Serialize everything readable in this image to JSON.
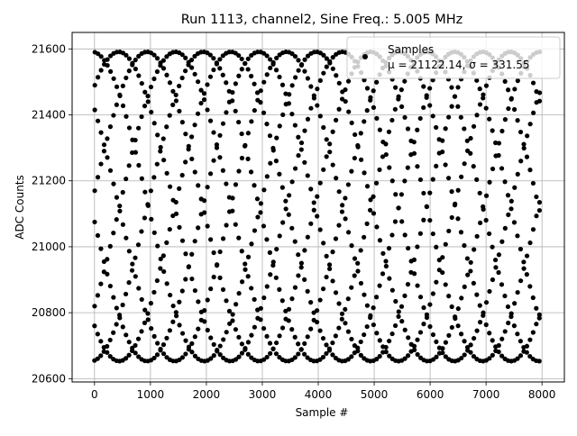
{
  "chart_data": {
    "type": "scatter",
    "title": "Run 1113, channel2, Sine Freq.: 5.005 MHz",
    "xlabel": "Sample #",
    "ylabel": "ADC Counts",
    "xlim": [
      -400,
      8400
    ],
    "ylim": [
      20590,
      21650
    ],
    "xticks": [
      0,
      1000,
      2000,
      3000,
      4000,
      5000,
      6000,
      7000,
      8000
    ],
    "yticks": [
      20600,
      20800,
      21000,
      21200,
      21400,
      21600
    ],
    "grid": true,
    "marker_color": "#000000",
    "legend": {
      "placement": "top-right",
      "entry": "Samples",
      "stats": "μ = 21122.14, σ = 331.55"
    },
    "series": [
      {
        "name": "Samples",
        "model": "sine_multiphase",
        "mean": 21122.14,
        "amplitude": 469,
        "sample_count": 8000,
        "period_samples": 4000,
        "phase_count": 8,
        "phase_starts": [
          20655,
          20760,
          20820,
          21075,
          21170,
          21415,
          21490,
          21590
        ]
      }
    ]
  }
}
